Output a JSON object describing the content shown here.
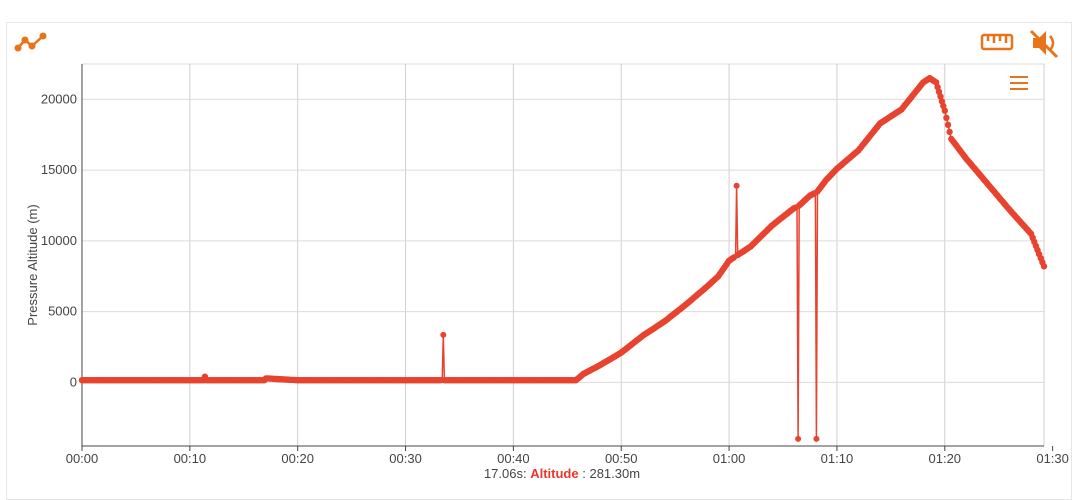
{
  "toolbar": {
    "chart_icon": "line-chart-icon",
    "measure_icon": "ruler-icon",
    "sound_icon": "speaker-muted-icon",
    "menu_icon": "hamburger-menu-icon",
    "accent_color": "#e8731a"
  },
  "readout": {
    "time": "17.06s:",
    "label": "Altitude",
    "value": ": 281.30m",
    "label_color": "#e8382c"
  },
  "chart_data": {
    "type": "line",
    "ylabel": "Pressure Altitude (m)",
    "xlabel": "",
    "x_unit": "minutes",
    "xlim": [
      0,
      89.2
    ],
    "ylim": [
      -4500,
      22500
    ],
    "x_ticks": [
      {
        "v": 0,
        "label": "00:00"
      },
      {
        "v": 10,
        "label": "00:10"
      },
      {
        "v": 20,
        "label": "00:20"
      },
      {
        "v": 30,
        "label": "00:30"
      },
      {
        "v": 40,
        "label": "00:40"
      },
      {
        "v": 50,
        "label": "00:50"
      },
      {
        "v": 60,
        "label": "01:00"
      },
      {
        "v": 70,
        "label": "01:10"
      },
      {
        "v": 80,
        "label": "01:20"
      },
      {
        "v": 90,
        "label": "01:30"
      }
    ],
    "y_ticks": [
      0,
      5000,
      10000,
      15000,
      20000
    ],
    "grid": true,
    "series_color": "#e8432f",
    "series": [
      {
        "name": "",
        "points": [
          [
            0,
            150
          ],
          [
            5,
            150
          ],
          [
            11.3,
            150
          ],
          [
            11.4,
            400
          ],
          [
            11.5,
            150
          ],
          [
            16.9,
            150
          ],
          [
            17.06,
            281
          ],
          [
            20,
            150
          ],
          [
            30,
            150
          ],
          [
            33.4,
            150
          ],
          [
            33.5,
            3350
          ],
          [
            33.6,
            150
          ],
          [
            40,
            150
          ],
          [
            45,
            150
          ],
          [
            45.8,
            150
          ],
          [
            46.5,
            600
          ],
          [
            48,
            1200
          ],
          [
            50,
            2100
          ],
          [
            52,
            3300
          ],
          [
            54,
            4300
          ],
          [
            56,
            5500
          ],
          [
            58,
            6800
          ],
          [
            59,
            7500
          ],
          [
            60,
            8600
          ],
          [
            60.6,
            8900
          ],
          [
            60.7,
            13900
          ],
          [
            60.8,
            9000
          ],
          [
            62,
            9600
          ],
          [
            64,
            11100
          ],
          [
            66,
            12300
          ],
          [
            66.3,
            12400
          ],
          [
            66.4,
            -4000
          ],
          [
            66.5,
            12500
          ],
          [
            67.5,
            13200
          ],
          [
            68,
            13400
          ],
          [
            68.1,
            -4000
          ],
          [
            68.2,
            13500
          ],
          [
            69,
            14300
          ],
          [
            70,
            15100
          ],
          [
            72,
            16400
          ],
          [
            74,
            18300
          ],
          [
            76,
            19300
          ],
          [
            78,
            21200
          ],
          [
            78.6,
            21500
          ],
          [
            79.2,
            21200
          ],
          [
            80,
            19200
          ],
          [
            80.6,
            17200
          ],
          [
            82,
            15800
          ],
          [
            84,
            14000
          ],
          [
            86,
            12200
          ],
          [
            88,
            10500
          ],
          [
            89.2,
            8200
          ]
        ]
      }
    ]
  }
}
